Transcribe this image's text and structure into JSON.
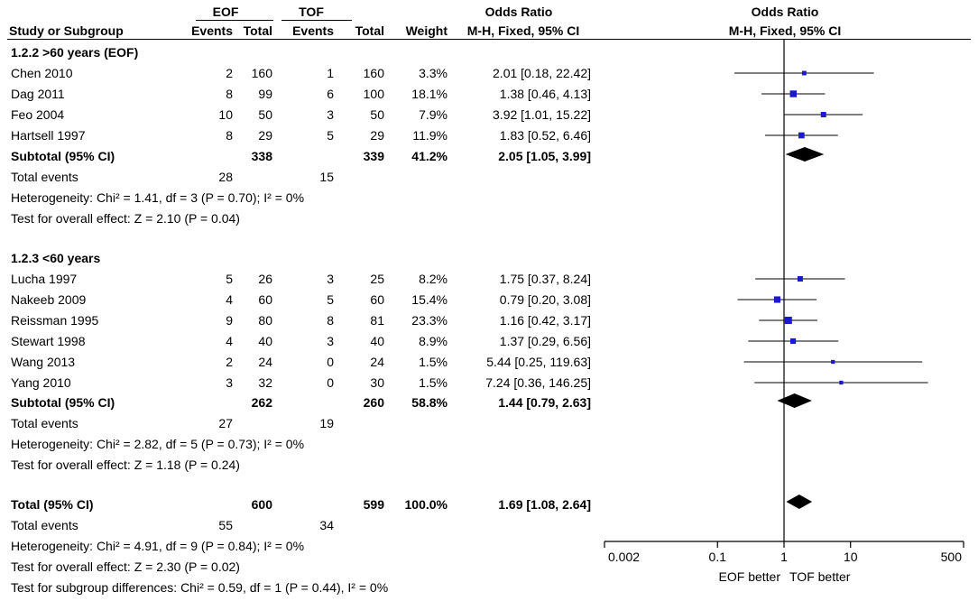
{
  "header": {
    "group1": "EOF",
    "group2": "TOF",
    "or_title_left": "Odds Ratio",
    "or_title_right": "Odds Ratio",
    "col_study": "Study or Subgroup",
    "col_events1": "Events",
    "col_total1": "Total",
    "col_events2": "Events",
    "col_total2": "Total",
    "col_weight": "Weight",
    "col_method_left": "M-H, Fixed, 95% CI",
    "col_method_right": "M-H, Fixed, 95% CI"
  },
  "subgroups": [
    {
      "title": "1.2.2 >60 years (EOF)",
      "studies": [
        {
          "name": "Chen 2010",
          "e1": "2",
          "t1": "160",
          "e2": "1",
          "t2": "160",
          "weight": "3.3%",
          "ci": "2.01 [0.18, 22.42]"
        },
        {
          "name": "Dag 2011",
          "e1": "8",
          "t1": "99",
          "e2": "6",
          "t2": "100",
          "weight": "18.1%",
          "ci": "1.38 [0.46, 4.13]"
        },
        {
          "name": "Feo 2004",
          "e1": "10",
          "t1": "50",
          "e2": "3",
          "t2": "50",
          "weight": "7.9%",
          "ci": "3.92 [1.01, 15.22]"
        },
        {
          "name": "Hartsell 1997",
          "e1": "8",
          "t1": "29",
          "e2": "5",
          "t2": "29",
          "weight": "11.9%",
          "ci": "1.83 [0.52, 6.46]"
        }
      ],
      "subtotal": {
        "label": "Subtotal (95% CI)",
        "t1": "338",
        "t2": "339",
        "weight": "41.2%",
        "ci": "2.05 [1.05, 3.99]"
      },
      "total_events": {
        "label": "Total events",
        "e1": "28",
        "e2": "15"
      },
      "heterogeneity": "Heterogeneity: Chi² = 1.41, df = 3 (P = 0.70); I² = 0%",
      "overall": "Test for overall effect: Z = 2.10 (P = 0.04)"
    },
    {
      "title": "1.2.3 <60 years",
      "studies": [
        {
          "name": "Lucha 1997",
          "e1": "5",
          "t1": "26",
          "e2": "3",
          "t2": "25",
          "weight": "8.2%",
          "ci": "1.75 [0.37, 8.24]"
        },
        {
          "name": "Nakeeb 2009",
          "e1": "4",
          "t1": "60",
          "e2": "5",
          "t2": "60",
          "weight": "15.4%",
          "ci": "0.79 [0.20, 3.08]"
        },
        {
          "name": "Reissman 1995",
          "e1": "9",
          "t1": "80",
          "e2": "8",
          "t2": "81",
          "weight": "23.3%",
          "ci": "1.16 [0.42, 3.17]"
        },
        {
          "name": "Stewart 1998",
          "e1": "4",
          "t1": "40",
          "e2": "3",
          "t2": "40",
          "weight": "8.9%",
          "ci": "1.37 [0.29, 6.56]"
        },
        {
          "name": "Wang 2013",
          "e1": "2",
          "t1": "24",
          "e2": "0",
          "t2": "24",
          "weight": "1.5%",
          "ci": "5.44 [0.25, 119.63]"
        },
        {
          "name": "Yang 2010",
          "e1": "3",
          "t1": "32",
          "e2": "0",
          "t2": "30",
          "weight": "1.5%",
          "ci": "7.24 [0.36, 146.25]"
        }
      ],
      "subtotal": {
        "label": "Subtotal (95% CI)",
        "t1": "262",
        "t2": "260",
        "weight": "58.8%",
        "ci": "1.44 [0.79, 2.63]"
      },
      "total_events": {
        "label": "Total events",
        "e1": "27",
        "e2": "19"
      },
      "heterogeneity": "Heterogeneity: Chi² = 2.82, df = 5 (P = 0.73); I² = 0%",
      "overall": "Test for overall effect: Z = 1.18 (P = 0.24)"
    }
  ],
  "total": {
    "label": "Total (95% CI)",
    "t1": "600",
    "t2": "599",
    "weight": "100.0%",
    "ci": "1.69 [1.08, 2.64]",
    "total_events": {
      "label": "Total events",
      "e1": "55",
      "e2": "34"
    },
    "heterogeneity": "Heterogeneity: Chi² = 4.91, df = 9 (P = 0.84); I² = 0%",
    "overall": "Test for overall effect: Z = 2.30 (P = 0.02)",
    "subgroup_diff": "Test for subgroup differences: Chi² = 0.59, df = 1 (P = 0.44), I² = 0%"
  },
  "chart_data": {
    "type": "forest",
    "scale": "log",
    "null_value": 1,
    "xlim": [
      0.002,
      500
    ],
    "ticks": [
      0.002,
      0.1,
      1,
      10,
      500
    ],
    "tick_labels": [
      "0.002",
      "0.1",
      "1",
      "10",
      "500"
    ],
    "favours_left": "EOF better",
    "favours_right": "TOF better",
    "marker_color": "#1a1acc",
    "studies": [
      {
        "name": "Chen 2010",
        "or": 2.01,
        "lo": 0.18,
        "hi": 22.42,
        "weight": 3.3
      },
      {
        "name": "Dag 2011",
        "or": 1.38,
        "lo": 0.46,
        "hi": 4.13,
        "weight": 18.1
      },
      {
        "name": "Feo 2004",
        "or": 3.92,
        "lo": 1.01,
        "hi": 15.22,
        "weight": 7.9
      },
      {
        "name": "Hartsell 1997",
        "or": 1.83,
        "lo": 0.52,
        "hi": 6.46,
        "weight": 11.9
      },
      {
        "name": "Lucha 1997",
        "or": 1.75,
        "lo": 0.37,
        "hi": 8.24,
        "weight": 8.2
      },
      {
        "name": "Nakeeb 2009",
        "or": 0.79,
        "lo": 0.2,
        "hi": 3.08,
        "weight": 15.4
      },
      {
        "name": "Reissman 1995",
        "or": 1.16,
        "lo": 0.42,
        "hi": 3.17,
        "weight": 23.3
      },
      {
        "name": "Stewart 1998",
        "or": 1.37,
        "lo": 0.29,
        "hi": 6.56,
        "weight": 8.9
      },
      {
        "name": "Wang 2013",
        "or": 5.44,
        "lo": 0.25,
        "hi": 119.63,
        "weight": 1.5
      },
      {
        "name": "Yang 2010",
        "or": 7.24,
        "lo": 0.36,
        "hi": 146.25,
        "weight": 1.5
      }
    ],
    "pooled": [
      {
        "name": "Subtotal (95% CI) >60 years",
        "or": 2.05,
        "lo": 1.05,
        "hi": 3.99
      },
      {
        "name": "Subtotal (95% CI) <60 years",
        "or": 1.44,
        "lo": 0.79,
        "hi": 2.63
      },
      {
        "name": "Total (95% CI)",
        "or": 1.69,
        "lo": 1.08,
        "hi": 2.64
      }
    ]
  }
}
